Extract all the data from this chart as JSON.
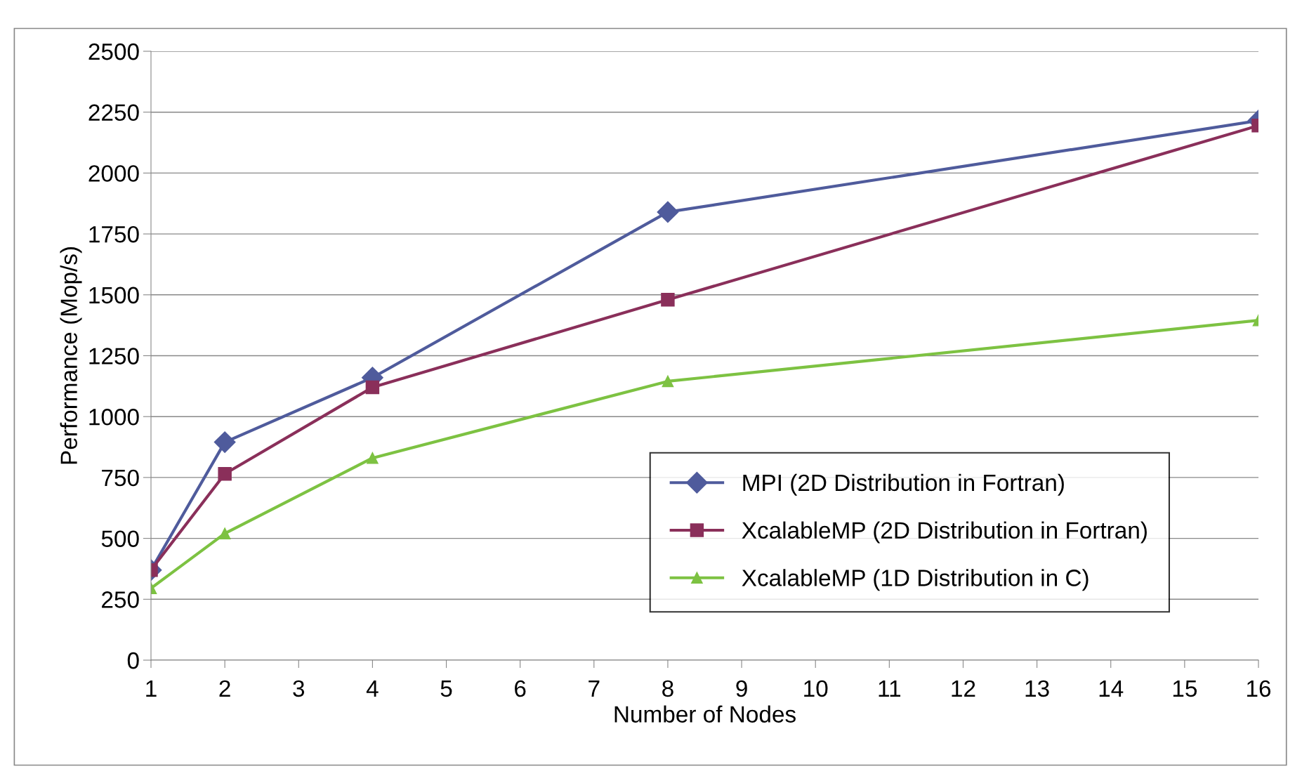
{
  "chart_data": {
    "type": "line",
    "xlabel": "Number of Nodes",
    "ylabel": "Performance (Mop/s)",
    "x": [
      1,
      2,
      4,
      8,
      16
    ],
    "xlim": [
      1,
      16
    ],
    "xticks": [
      1,
      2,
      3,
      4,
      5,
      6,
      7,
      8,
      9,
      10,
      11,
      12,
      13,
      14,
      15,
      16
    ],
    "ylim": [
      0,
      2500
    ],
    "yticks": [
      0,
      250,
      500,
      750,
      1000,
      1250,
      1500,
      1750,
      2000,
      2250,
      2500
    ],
    "grid": "y",
    "legend": "bottom right",
    "line_style": "solid",
    "series": [
      {
        "name": "MPI (2D Distribution in Fortran)",
        "color": "#4f5b9c",
        "marker": "diamond",
        "values": [
          370,
          895,
          1160,
          1840,
          2215
        ]
      },
      {
        "name": "XcalableMP (2D Distribution in Fortran)",
        "color": "#8a2f5a",
        "marker": "square",
        "values": [
          370,
          765,
          1120,
          1480,
          2195
        ]
      },
      {
        "name": "XcalableMP (1D Distribution in C)",
        "color": "#7dc242",
        "marker": "triangle",
        "values": [
          295,
          520,
          830,
          1145,
          1395
        ]
      }
    ]
  }
}
